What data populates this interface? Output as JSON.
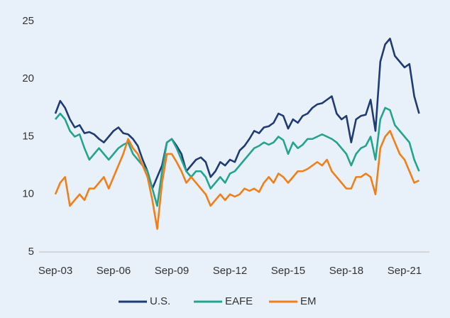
{
  "chart_data": {
    "type": "line",
    "categories": [
      "Sep-03",
      null,
      null,
      null,
      null,
      null,
      null,
      null,
      null,
      null,
      null,
      null,
      "Sep-06",
      null,
      null,
      null,
      null,
      null,
      null,
      null,
      null,
      null,
      null,
      null,
      "Sep-09",
      null,
      null,
      null,
      null,
      null,
      null,
      null,
      null,
      null,
      null,
      null,
      "Sep-12",
      null,
      null,
      null,
      null,
      null,
      null,
      null,
      null,
      null,
      null,
      null,
      "Sep-15",
      null,
      null,
      null,
      null,
      null,
      null,
      null,
      null,
      null,
      null,
      null,
      "Sep-18",
      null,
      null,
      null,
      null,
      null,
      null,
      null,
      null,
      null,
      null,
      null,
      "Sep-21",
      null,
      null,
      null
    ],
    "series": [
      {
        "name": "U.S.",
        "color": "#1f3b73",
        "values": [
          17,
          18.1,
          17.5,
          16.5,
          15.8,
          16.0,
          15.3,
          15.4,
          15.2,
          14.8,
          14.5,
          15.0,
          15.5,
          15.8,
          15.3,
          15.2,
          14.8,
          14.2,
          13.0,
          12.0,
          10.5,
          11.5,
          12.5,
          14.5,
          14.8,
          14.2,
          13.5,
          12.0,
          12.5,
          13.0,
          13.2,
          12.8,
          11.5,
          12.0,
          12.8,
          12.5,
          13.0,
          12.8,
          13.8,
          14.2,
          14.8,
          15.5,
          15.3,
          15.8,
          15.9,
          16.2,
          17.0,
          16.8,
          15.7,
          16.5,
          16.2,
          16.8,
          17.0,
          17.5,
          17.8,
          17.9,
          18.2,
          18.5,
          17.0,
          16.5,
          16.8,
          14.5,
          16.5,
          16.8,
          16.9,
          18.2,
          15.5,
          21.5,
          23.0,
          23.5,
          22.0,
          21.5,
          21.0,
          21.3,
          18.5,
          17.0
        ]
      },
      {
        "name": "EAFE",
        "color": "#24a38e",
        "values": [
          16.5,
          17.0,
          16.5,
          15.5,
          15.0,
          15.2,
          14.0,
          13.0,
          13.5,
          14.0,
          13.5,
          13.0,
          13.5,
          14.0,
          14.3,
          14.5,
          13.5,
          13.0,
          12.5,
          12.0,
          10.5,
          9.0,
          12.0,
          14.5,
          14.8,
          14.0,
          13.0,
          12.0,
          11.5,
          12.0,
          12.0,
          11.5,
          10.5,
          11.0,
          11.5,
          11.0,
          11.8,
          12.0,
          12.5,
          13.0,
          13.5,
          14.0,
          14.2,
          14.5,
          14.3,
          14.5,
          15.0,
          14.7,
          13.5,
          14.5,
          14.0,
          14.3,
          14.8,
          14.8,
          15.0,
          15.2,
          15.0,
          14.8,
          14.5,
          14.0,
          13.5,
          12.5,
          13.5,
          14.0,
          14.2,
          15.0,
          13.0,
          16.5,
          17.5,
          17.3,
          16.0,
          15.5,
          15.0,
          14.5,
          13.0,
          12.0
        ]
      },
      {
        "name": "EM",
        "color": "#f07f1a",
        "values": [
          10.0,
          11.0,
          11.5,
          9.0,
          9.5,
          10.0,
          9.5,
          10.5,
          10.5,
          11.0,
          11.5,
          10.5,
          11.5,
          12.5,
          13.5,
          14.8,
          14.0,
          13.5,
          12.5,
          11.5,
          9.5,
          7.0,
          11.0,
          13.5,
          13.5,
          12.8,
          12.0,
          11.0,
          11.5,
          11.0,
          10.5,
          10.0,
          9.0,
          9.5,
          10.0,
          9.5,
          10.0,
          9.8,
          10.0,
          10.5,
          10.3,
          10.5,
          10.2,
          11.0,
          11.5,
          11.0,
          11.8,
          11.5,
          11.0,
          11.5,
          12.0,
          12.0,
          12.2,
          12.5,
          12.8,
          12.5,
          13.0,
          12.0,
          11.5,
          11.0,
          10.5,
          10.5,
          11.5,
          11.5,
          11.8,
          11.5,
          10.0,
          14.0,
          15.0,
          15.5,
          14.5,
          13.5,
          13.0,
          12.0,
          11.0,
          11.2
        ]
      }
    ],
    "ylim": [
      5,
      25
    ],
    "yticks": [
      5,
      10,
      15,
      20,
      25
    ],
    "grid": false,
    "legend": "bottom"
  }
}
